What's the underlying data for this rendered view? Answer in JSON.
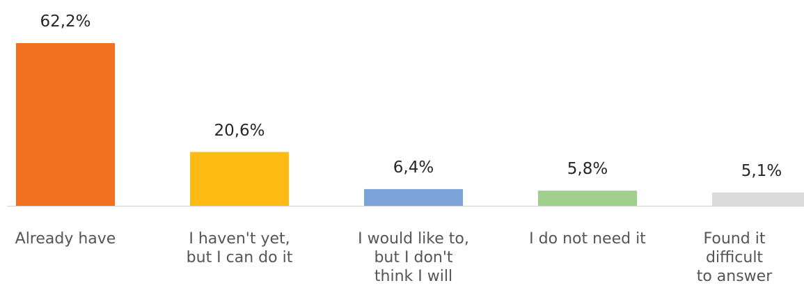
{
  "chart_data": {
    "type": "bar",
    "categories": [
      "Already have",
      "I haven't yet,\nbut I can do it",
      "I would like to,\nbut I don't\nthink I will",
      "I do not need it",
      "Found it\ndifficult\nto answer"
    ],
    "values": [
      62.2,
      20.6,
      6.4,
      5.8,
      5.1
    ],
    "value_labels": [
      "62,2%",
      "20,6%",
      "6,4%",
      "5,8%",
      "5,1%"
    ],
    "colors": [
      "#F37021",
      "#FDBB13",
      "#7BA3D7",
      "#9ECF8C",
      "#DADADA"
    ],
    "ylim": [
      0,
      62.2
    ],
    "grid": false,
    "legend": "none",
    "baseline_color": "#D9D9D9"
  }
}
